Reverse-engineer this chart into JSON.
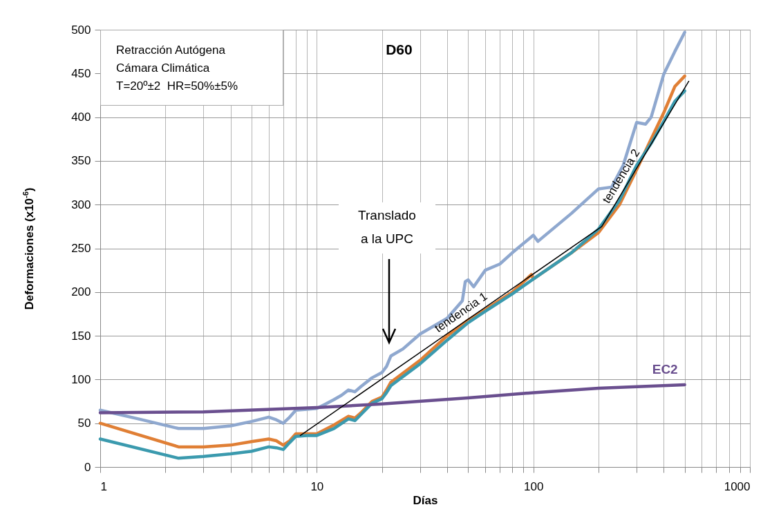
{
  "chart_data": {
    "type": "line",
    "title": "D60",
    "xlabel": "Días",
    "ylabel": "Deformaciones (x10$^{-6}$)",
    "log": "x",
    "xlim": [
      1,
      1000
    ],
    "ylim": [
      0,
      500
    ],
    "xticks": [
      1,
      {
        "value": 2,
        "label": null
      },
      {
        "value": 3,
        "label": null
      },
      {
        "value": 4,
        "label": null
      },
      {
        "value": 5,
        "label": null
      },
      {
        "value": 6,
        "label": null
      },
      {
        "value": 7,
        "label": null
      },
      {
        "value": 8,
        "label": null
      },
      {
        "value": 9,
        "label": null
      },
      10,
      {
        "value": 20,
        "label": null
      },
      {
        "value": 30,
        "label": null
      },
      {
        "value": 40,
        "label": null
      },
      {
        "value": 50,
        "label": null
      },
      {
        "value": 60,
        "label": null
      },
      {
        "value": 70,
        "label": null
      },
      {
        "value": 80,
        "label": null
      },
      {
        "value": 90,
        "label": null
      },
      100,
      {
        "value": 200,
        "label": null
      },
      {
        "value": 300,
        "label": null
      },
      {
        "value": 400,
        "label": null
      },
      {
        "value": 500,
        "label": null
      },
      {
        "value": 600,
        "label": null
      },
      {
        "value": 700,
        "label": null
      },
      {
        "value": 800,
        "label": null
      },
      {
        "value": 900,
        "label": null
      },
      1000
    ],
    "yticks": [
      0,
      50,
      100,
      150,
      200,
      250,
      300,
      350,
      400,
      450,
      500
    ],
    "grid": true,
    "annotations": [
      "Retracción Autógena\nCámara Climática\nT=20º±2  HR=50%±5%",
      "Translado\na la UPC",
      {
        "text": "tendencia 1",
        "x": 49,
        "y": 168
      },
      {
        "text": "tendencia 2",
        "x": 277,
        "y": 327
      }
    ],
    "series": [
      {
        "color": "#8fa8cf",
        "x": [
          1,
          1.5,
          2.3,
          3,
          4,
          5,
          6,
          6.5,
          7,
          7.5,
          8,
          9,
          10,
          11,
          12,
          13,
          14,
          15,
          16,
          18,
          20,
          21,
          22,
          25,
          30,
          40,
          47,
          48.5,
          50,
          53,
          60,
          70,
          80,
          100,
          105,
          150,
          200,
          230,
          260,
          300,
          330,
          350,
          400,
          450,
          500
        ],
        "values": [
          65,
          55,
          44,
          44,
          47,
          52,
          57,
          54,
          50,
          57,
          65,
          66,
          67,
          72,
          77,
          82,
          88,
          86,
          92,
          102,
          108,
          115,
          127,
          135,
          152,
          170,
          190,
          212,
          214,
          206,
          225,
          232,
          245,
          265,
          258,
          290,
          318,
          320,
          345,
          394,
          392,
          400,
          449,
          475,
          497
        ]
      },
      {
        "color": "#e07f35",
        "x": [
          1,
          2.3,
          3,
          4,
          5,
          6,
          6.5,
          7,
          7.5,
          8,
          9,
          10,
          12,
          14,
          15,
          16,
          18,
          20,
          21,
          22,
          30,
          40,
          50,
          60,
          80,
          98,
          100,
          150,
          200,
          250,
          300,
          350,
          400,
          450,
          500
        ],
        "values": [
          50,
          23,
          23,
          25,
          29,
          32,
          30,
          25,
          30,
          38,
          38,
          38,
          48,
          58,
          56,
          62,
          75,
          80,
          88,
          97,
          122,
          150,
          168,
          180,
          200,
          220,
          215,
          245,
          268,
          300,
          340,
          375,
          405,
          435,
          447
        ]
      },
      {
        "color": "#3b9aae",
        "x": [
          1,
          2.3,
          3,
          4,
          5,
          6,
          6.5,
          7,
          7.5,
          8,
          9,
          10,
          12,
          14,
          15,
          16,
          18,
          20,
          21,
          22,
          30,
          40,
          50,
          60,
          80,
          100,
          150,
          200,
          250,
          300,
          350,
          400,
          450,
          500
        ],
        "values": [
          32,
          10,
          12,
          15,
          18,
          23,
          22,
          20,
          28,
          35,
          36,
          36,
          44,
          55,
          53,
          60,
          73,
          78,
          85,
          93,
          118,
          145,
          165,
          178,
          198,
          215,
          245,
          272,
          305,
          345,
          370,
          395,
          418,
          430
        ]
      },
      {
        "name": "EC2",
        "color": "#6a4f8f",
        "x": [
          1,
          3,
          10,
          20,
          50,
          100,
          200,
          500
        ],
        "values": [
          62,
          63,
          68,
          72,
          79,
          85,
          90,
          94
        ]
      },
      {
        "color": "#000000",
        "x": [
          8.4,
          207,
          522
        ],
        "values": [
          36,
          275,
          441
        ]
      }
    ]
  }
}
